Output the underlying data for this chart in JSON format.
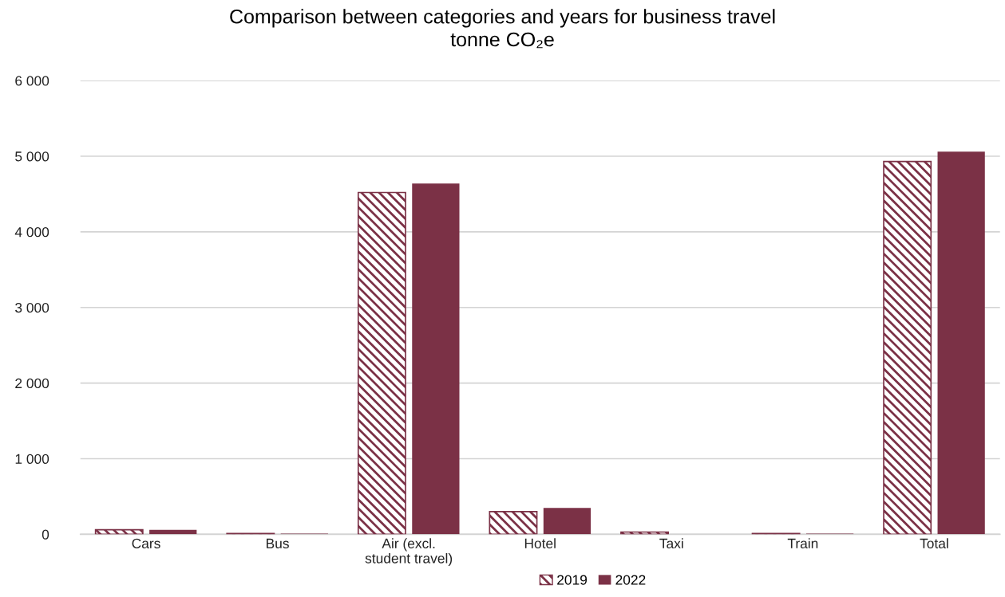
{
  "chart_data": {
    "type": "bar",
    "title": "Comparison between categories and years for business travel\ntonne CO₂e",
    "categories": [
      "Cars",
      "Bus",
      "Air (excl.\nstudent travel)",
      "Hotel",
      "Taxi",
      "Train",
      "Total"
    ],
    "series": [
      {
        "name": "2019",
        "color": "#7b3146",
        "values": [
          60,
          10,
          4520,
          300,
          30,
          10,
          4930
        ]
      },
      {
        "name": "2022",
        "color": "#7b3146",
        "values": [
          60,
          10,
          4640,
          350,
          0,
          10,
          5060
        ]
      }
    ],
    "ylim": [
      0,
      6000
    ],
    "yticks": [
      {
        "value": 0,
        "label": "0"
      },
      {
        "value": 1000,
        "label": "1 000"
      },
      {
        "value": 2000,
        "label": "2 000"
      },
      {
        "value": 3000,
        "label": "3 000"
      },
      {
        "value": 4000,
        "label": "4 000"
      },
      {
        "value": 5000,
        "label": "5 000"
      },
      {
        "value": 6000,
        "label": "6 000"
      }
    ],
    "grid": "y",
    "legend": "bottom"
  }
}
